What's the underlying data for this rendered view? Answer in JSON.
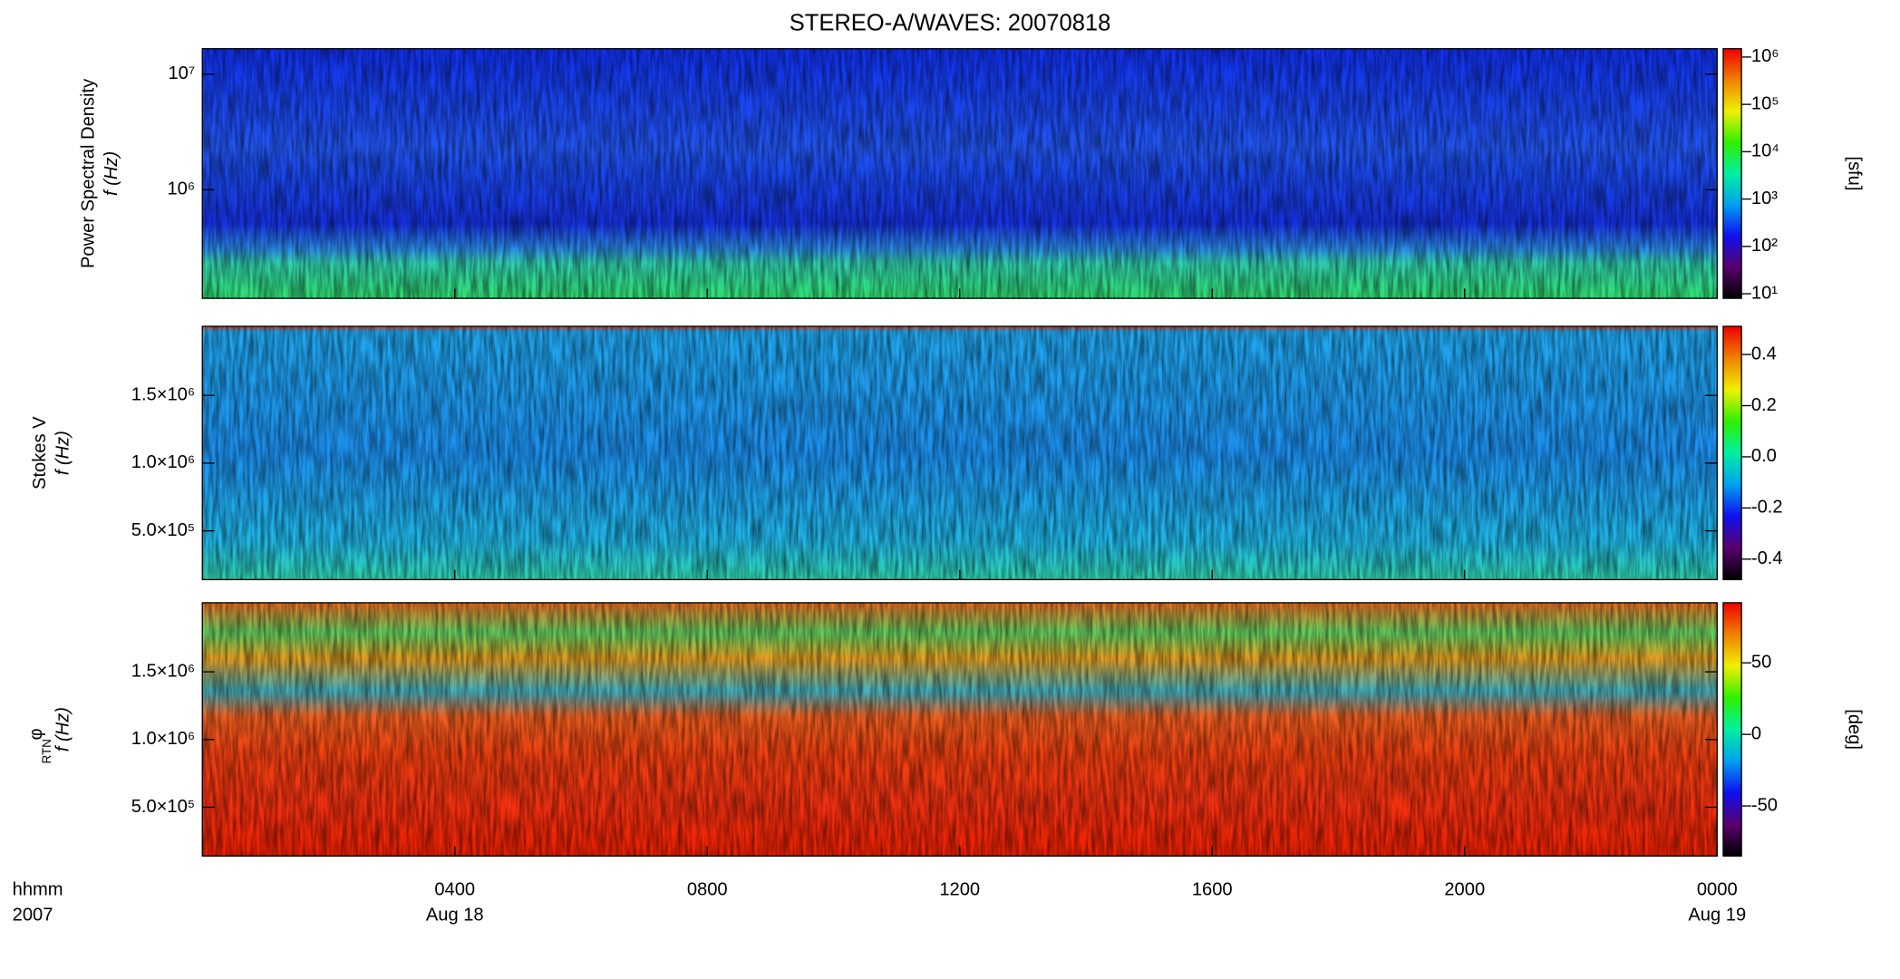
{
  "title": "STEREO-A/WAVES: 20070818",
  "colormap": [
    "#000000",
    "#5a006e",
    "#1010f0",
    "#00a0f0",
    "#00f0a0",
    "#30f000",
    "#f0f000",
    "#f08000",
    "#f00000"
  ],
  "x_axis": {
    "label": "hhmm",
    "year": "2007",
    "xlim": [
      0,
      24
    ],
    "xticks": [
      {
        "value": 4,
        "label": "0400",
        "date": "Aug 18"
      },
      {
        "value": 8,
        "label": "0800"
      },
      {
        "value": 12,
        "label": "1200"
      },
      {
        "value": 16,
        "label": "1600"
      },
      {
        "value": 20,
        "label": "2000"
      },
      {
        "value": 24,
        "label": "0000",
        "date": "Aug 19"
      }
    ]
  },
  "chart_data": [
    {
      "type": "spectrogram",
      "ylabel": "Power Spectral Density",
      "yunit": "f (Hz)",
      "ylog": true,
      "ylim": [
        115000,
        16600000
      ],
      "yticks": [
        {
          "value": 1000000,
          "label": "10⁶"
        },
        {
          "value": 10000000,
          "label": "10⁷"
        }
      ],
      "colorbar": {
        "log": true,
        "clim": [
          8,
          1500000
        ],
        "label": "[sfu]",
        "cticks": [
          {
            "value": 10,
            "label": "10¹"
          },
          {
            "value": 100,
            "label": "10²"
          },
          {
            "value": 1000,
            "label": "10³"
          },
          {
            "value": 10000,
            "label": "10⁴"
          },
          {
            "value": 100000,
            "label": "10⁵"
          },
          {
            "value": 1000000,
            "label": "10⁶"
          }
        ]
      }
    },
    {
      "type": "spectrogram",
      "ylabel": "Stokes V",
      "yunit": "f (Hz)",
      "ylog": false,
      "ylim": [
        140000,
        2010000
      ],
      "yticks": [
        {
          "value": 500000,
          "label": "5.0×10⁵"
        },
        {
          "value": 1000000,
          "label": "1.0×10⁶"
        },
        {
          "value": 1500000,
          "label": "1.5×10⁶"
        }
      ],
      "colorbar": {
        "log": false,
        "clim": [
          -0.48,
          0.51
        ],
        "cticks": [
          -0.4,
          -0.2,
          {
            "value": 0,
            "label": "0.0"
          },
          0.2,
          0.4
        ]
      }
    },
    {
      "type": "spectrogram",
      "ylabel": "φ",
      "ylabel_subscript": "RTN",
      "yunit": "f (Hz)",
      "ylog": false,
      "ylim": [
        140000,
        2010000
      ],
      "yticks": [
        {
          "value": 500000,
          "label": "5.0×10⁵"
        },
        {
          "value": 1000000,
          "label": "1.0×10⁶"
        },
        {
          "value": 1500000,
          "label": "1.5×10⁶"
        }
      ],
      "colorbar": {
        "log": false,
        "clim": [
          -85,
          92
        ],
        "label": "[deg]",
        "cticks": [
          -50,
          0,
          50
        ]
      }
    }
  ]
}
